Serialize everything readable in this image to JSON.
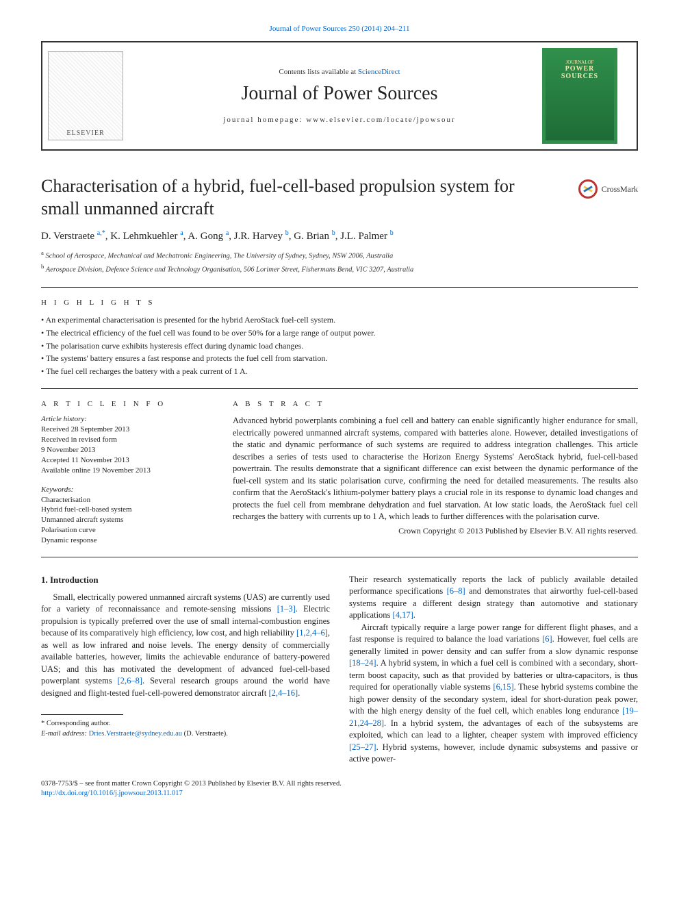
{
  "meta": {
    "citation_link": "Journal of Power Sources 250 (2014) 204–211",
    "citation_href": "#"
  },
  "masthead": {
    "availability_prefix": "Contents lists available at ",
    "availability_linktext": "ScienceDirect",
    "journal_name": "Journal of Power Sources",
    "homepage_text": "journal homepage: www.elsevier.com/locate/jpowsour",
    "publisher_logo_text": "ELSEVIER",
    "cover_line1": "JOURNALOF",
    "cover_line2": "POWER",
    "cover_line3": "SOURCES"
  },
  "article": {
    "title": "Characterisation of a hybrid, fuel-cell-based propulsion system for small unmanned aircraft",
    "crossmark_label": "CrossMark",
    "authors_html_parts": {
      "a1": "D. Verstraete ",
      "s1": "a,*",
      "a2": ", K. Lehmkuehler ",
      "s2": "a",
      "a3": ", A. Gong ",
      "s3": "a",
      "a4": ", J.R. Harvey ",
      "s4": "b",
      "a5": ", G. Brian ",
      "s5": "b",
      "a6": ", J.L. Palmer ",
      "s6": "b"
    },
    "affiliations": [
      {
        "sup": "a",
        "text": "School of Aerospace, Mechanical and Mechatronic Engineering, The University of Sydney, Sydney, NSW 2006, Australia"
      },
      {
        "sup": "b",
        "text": "Aerospace Division, Defence Science and Technology Organisation, 506 Lorimer Street, Fishermans Bend, VIC 3207, Australia"
      }
    ]
  },
  "highlights": {
    "label": "H I G H L I G H T S",
    "items": [
      "An experimental characterisation is presented for the hybrid AeroStack fuel-cell system.",
      "The electrical efficiency of the fuel cell was found to be over 50% for a large range of output power.",
      "The polarisation curve exhibits hysteresis effect during dynamic load changes.",
      "The systems' battery ensures a fast response and protects the fuel cell from starvation.",
      "The fuel cell recharges the battery with a peak current of 1 A."
    ]
  },
  "info": {
    "label": "A R T I C L E  I N F O",
    "history_label": "Article history:",
    "history": [
      "Received 28 September 2013",
      "Received in revised form",
      "9 November 2013",
      "Accepted 11 November 2013",
      "Available online 19 November 2013"
    ],
    "keywords_label": "Keywords:",
    "keywords": [
      "Characterisation",
      "Hybrid fuel-cell-based system",
      "Unmanned aircraft systems",
      "Polarisation curve",
      "Dynamic response"
    ]
  },
  "abstract": {
    "label": "A B S T R A C T",
    "text": "Advanced hybrid powerplants combining a fuel cell and battery can enable significantly higher endurance for small, electrically powered unmanned aircraft systems, compared with batteries alone. However, detailed investigations of the static and dynamic performance of such systems are required to address integration challenges. This article describes a series of tests used to characterise the Horizon Energy Systems' AeroStack hybrid, fuel-cell-based powertrain. The results demonstrate that a significant difference can exist between the dynamic performance of the fuel-cell system and its static polarisation curve, confirming the need for detailed measurements. The results also confirm that the AeroStack's lithium-polymer battery plays a crucial role in its response to dynamic load changes and protects the fuel cell from membrane dehydration and fuel starvation. At low static loads, the AeroStack fuel cell recharges the battery with currents up to 1 A, which leads to further differences with the polarisation curve.",
    "copyright": "Crown Copyright © 2013 Published by Elsevier B.V. All rights reserved."
  },
  "body": {
    "heading": "1. Introduction",
    "p1a": "Small, electrically powered unmanned aircraft systems (UAS) are currently used for a variety of reconnaissance and remote-sensing missions ",
    "r1": "[1–3]",
    "p1b": ". Electric propulsion is typically preferred over the use of small internal-combustion engines because of its comparatively high efficiency, low cost, and high reliability ",
    "r2": "[1,2,4–6]",
    "p1c": ", as well as low infrared and noise levels. The energy density of commercially available batteries, however, limits the achievable endurance of battery-powered UAS; and this has motivated the development of advanced fuel-cell-based powerplant systems ",
    "r3": "[2,6–8]",
    "p1d": ". Several research groups around the world have designed and flight-tested fuel-cell-powered demonstrator aircraft ",
    "r4": "[2,4–16]",
    "p1e": ".",
    "p2a": "Their research systematically reports the lack of publicly available detailed performance specifications ",
    "r5": "[6–8]",
    "p2b": " and demonstrates that airworthy fuel-cell-based systems require a different design strategy than automotive and stationary applications ",
    "r6": "[4,17]",
    "p2c": ".",
    "p3a": "Aircraft typically require a large power range for different flight phases, and a fast response is required to balance the load variations ",
    "r7": "[6]",
    "p3b": ". However, fuel cells are generally limited in power density and can suffer from a slow dynamic response ",
    "r8": "[18–24]",
    "p3c": ". A hybrid system, in which a fuel cell is combined with a secondary, short-term boost capacity, such as that provided by batteries or ultra-capacitors, is thus required for operationally viable systems ",
    "r9": "[6,15]",
    "p3d": ". These hybrid systems combine the high power density of the secondary system, ideal for short-duration peak power, with the high energy density of the fuel cell, which enables long endurance ",
    "r10": "[19–21,24–28]",
    "p3e": ". In a hybrid system, the advantages of each of the subsystems are exploited, which can lead to a lighter, cheaper system with improved efficiency ",
    "r11": "[25–27]",
    "p3f": ". Hybrid systems, however, include dynamic subsystems and passive or active power-"
  },
  "footnote": {
    "corr_label": "* Corresponding author.",
    "email_label": "E-mail address:",
    "email": "Dries.Verstraete@sydney.edu.au",
    "email_suffix": "(D. Verstraete)."
  },
  "footer": {
    "line1": "0378-7753/$ – see front matter Crown Copyright © 2013 Published by Elsevier B.V. All rights reserved.",
    "doi": "http://dx.doi.org/10.1016/j.jpowsour.2013.11.017"
  },
  "colors": {
    "link": "#0066cc",
    "text": "#222222",
    "rule": "#222222",
    "cover_green": "#2f8f4b",
    "cover_gold": "#fcd34d"
  },
  "typography": {
    "body_pt": 12.5,
    "title_pt": 26,
    "journal_name_pt": 28,
    "small_pt": 11,
    "footnote_pt": 10.5
  }
}
